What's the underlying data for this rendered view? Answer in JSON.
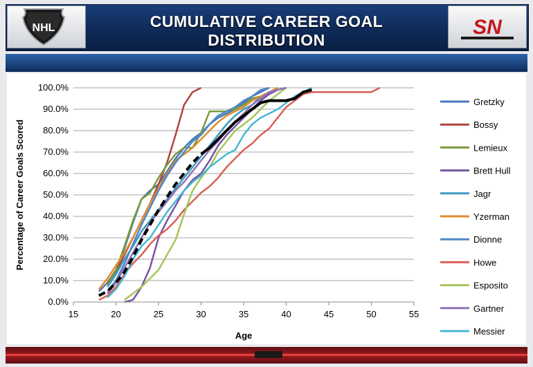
{
  "header": {
    "title": "CUMULATIVE CAREER GOAL DISTRIBUTION",
    "left_logo": "NHL",
    "right_logo": "SN"
  },
  "colors": {
    "header_bg": "#0f2a57",
    "accent_red": "#a3191e"
  },
  "chart_data": {
    "type": "line",
    "title": "",
    "xlabel": "Age",
    "ylabel": "Percentage of Career Goals Scored",
    "xlim": [
      15,
      55
    ],
    "ylim": [
      0,
      100
    ],
    "x_ticks": [
      15,
      20,
      25,
      30,
      35,
      40,
      45,
      50,
      55
    ],
    "x_tick_labels": [
      "15",
      "20",
      "25",
      "30",
      "35",
      "40",
      "45",
      "50",
      "55"
    ],
    "y_ticks": [
      0,
      10,
      20,
      30,
      40,
      50,
      60,
      70,
      80,
      90,
      100
    ],
    "y_tick_labels": [
      "0.0%",
      "10.0%",
      "20.0%",
      "30.0%",
      "40.0%",
      "50.0%",
      "60.0%",
      "70.0%",
      "80.0%",
      "90.0%",
      "100.0%"
    ],
    "grid": "horizontal",
    "legend": "right",
    "series": [
      {
        "name": "Gretzky",
        "color": "#4477bb",
        "points": [
          [
            18,
            5
          ],
          [
            19,
            9
          ],
          [
            20,
            15
          ],
          [
            21,
            25
          ],
          [
            22,
            37
          ],
          [
            23,
            48
          ],
          [
            24,
            52
          ],
          [
            25,
            55
          ],
          [
            26,
            61
          ],
          [
            27,
            67
          ],
          [
            28,
            72
          ],
          [
            29,
            76
          ],
          [
            30,
            79
          ],
          [
            31,
            83
          ],
          [
            32,
            86
          ],
          [
            33,
            88
          ],
          [
            34,
            90
          ],
          [
            35,
            93
          ],
          [
            36,
            96
          ],
          [
            37,
            98
          ],
          [
            38,
            100
          ]
        ]
      },
      {
        "name": "Bossy",
        "color": "#b0443c",
        "points": [
          [
            19,
            9
          ],
          [
            20,
            14
          ],
          [
            21,
            22
          ],
          [
            22,
            30
          ],
          [
            23,
            38
          ],
          [
            24,
            46
          ],
          [
            25,
            55
          ],
          [
            26,
            65
          ],
          [
            27,
            78
          ],
          [
            28,
            92
          ],
          [
            29,
            98
          ],
          [
            30,
            100
          ]
        ]
      },
      {
        "name": "Lemieux",
        "color": "#7a9a3a",
        "points": [
          [
            19,
            8
          ],
          [
            20,
            15
          ],
          [
            21,
            26
          ],
          [
            22,
            38
          ],
          [
            23,
            48
          ],
          [
            24,
            51
          ],
          [
            25,
            58
          ],
          [
            26,
            64
          ],
          [
            27,
            69
          ],
          [
            28,
            72
          ],
          [
            29,
            72
          ],
          [
            30,
            79
          ],
          [
            31,
            89
          ],
          [
            32,
            89
          ],
          [
            33,
            89
          ],
          [
            34,
            90
          ],
          [
            35,
            92
          ],
          [
            36,
            95
          ],
          [
            37,
            96
          ],
          [
            38,
            97
          ],
          [
            39,
            100
          ]
        ]
      },
      {
        "name": "Brett Hull",
        "color": "#7755a3",
        "points": [
          [
            21,
            0
          ],
          [
            22,
            1
          ],
          [
            23,
            7
          ],
          [
            24,
            16
          ],
          [
            25,
            30
          ],
          [
            26,
            38
          ],
          [
            27,
            45
          ],
          [
            28,
            52
          ],
          [
            29,
            57
          ],
          [
            30,
            60
          ],
          [
            31,
            66
          ],
          [
            32,
            73
          ],
          [
            33,
            78
          ],
          [
            34,
            82
          ],
          [
            35,
            86
          ],
          [
            36,
            90
          ],
          [
            37,
            94
          ],
          [
            38,
            97
          ],
          [
            39,
            99
          ],
          [
            40,
            100
          ]
        ]
      },
      {
        "name": "Jagr",
        "color": "#3a9bbf",
        "points": [
          [
            19,
            7
          ],
          [
            20,
            13
          ],
          [
            21,
            20
          ],
          [
            22,
            26
          ],
          [
            23,
            33
          ],
          [
            24,
            38
          ],
          [
            25,
            43
          ],
          [
            26,
            48
          ],
          [
            27,
            53
          ],
          [
            28,
            58
          ],
          [
            29,
            63
          ],
          [
            30,
            68
          ],
          [
            31,
            73
          ],
          [
            32,
            78
          ],
          [
            33,
            83
          ],
          [
            34,
            87
          ],
          [
            35,
            90
          ],
          [
            36,
            92
          ],
          [
            37,
            96
          ],
          [
            38,
            98
          ],
          [
            39,
            99
          ],
          [
            40,
            100
          ]
        ]
      },
      {
        "name": "Yzerman",
        "color": "#e28a2c",
        "points": [
          [
            18,
            6
          ],
          [
            19,
            11
          ],
          [
            20,
            17
          ],
          [
            21,
            23
          ],
          [
            22,
            30
          ],
          [
            23,
            38
          ],
          [
            24,
            46
          ],
          [
            25,
            53
          ],
          [
            26,
            60
          ],
          [
            27,
            66
          ],
          [
            28,
            69
          ],
          [
            29,
            72
          ],
          [
            30,
            76
          ],
          [
            31,
            80
          ],
          [
            32,
            84
          ],
          [
            33,
            87
          ],
          [
            34,
            89
          ],
          [
            35,
            91
          ],
          [
            36,
            94
          ],
          [
            37,
            96
          ],
          [
            38,
            98
          ],
          [
            39,
            100
          ]
        ]
      },
      {
        "name": "Dionne",
        "color": "#4d88c7",
        "points": [
          [
            19,
            5
          ],
          [
            20,
            10
          ],
          [
            21,
            18
          ],
          [
            22,
            27
          ],
          [
            23,
            36
          ],
          [
            24,
            44
          ],
          [
            25,
            52
          ],
          [
            26,
            59
          ],
          [
            27,
            65
          ],
          [
            28,
            70
          ],
          [
            29,
            75
          ],
          [
            30,
            78
          ],
          [
            31,
            83
          ],
          [
            32,
            87
          ],
          [
            33,
            89
          ],
          [
            34,
            91
          ],
          [
            35,
            94
          ],
          [
            36,
            96
          ],
          [
            37,
            99
          ],
          [
            38,
            100
          ]
        ]
      },
      {
        "name": "Howe",
        "color": "#d96055",
        "points": [
          [
            18,
            1
          ],
          [
            19,
            3
          ],
          [
            20,
            7
          ],
          [
            21,
            13
          ],
          [
            22,
            18
          ],
          [
            23,
            22
          ],
          [
            24,
            27
          ],
          [
            25,
            31
          ],
          [
            26,
            34
          ],
          [
            27,
            38
          ],
          [
            28,
            43
          ],
          [
            29,
            47
          ],
          [
            30,
            51
          ],
          [
            31,
            54
          ],
          [
            32,
            58
          ],
          [
            33,
            63
          ],
          [
            34,
            67
          ],
          [
            35,
            71
          ],
          [
            36,
            74
          ],
          [
            37,
            78
          ],
          [
            38,
            81
          ],
          [
            39,
            86
          ],
          [
            40,
            91
          ],
          [
            41,
            94
          ],
          [
            42,
            97
          ],
          [
            43,
            98
          ],
          [
            50,
            98
          ],
          [
            51,
            100
          ]
        ]
      },
      {
        "name": "Esposito",
        "color": "#a5c55c",
        "points": [
          [
            21,
            1
          ],
          [
            22,
            4
          ],
          [
            23,
            7
          ],
          [
            24,
            11
          ],
          [
            25,
            15
          ],
          [
            26,
            22
          ],
          [
            27,
            29
          ],
          [
            28,
            41
          ],
          [
            29,
            52
          ],
          [
            30,
            58
          ],
          [
            31,
            63
          ],
          [
            32,
            70
          ],
          [
            33,
            75
          ],
          [
            34,
            80
          ],
          [
            35,
            83
          ],
          [
            36,
            86
          ],
          [
            37,
            90
          ],
          [
            38,
            94
          ],
          [
            39,
            97
          ],
          [
            40,
            100
          ]
        ]
      },
      {
        "name": "Gartner",
        "color": "#9072b8",
        "points": [
          [
            19,
            4
          ],
          [
            20,
            9
          ],
          [
            21,
            16
          ],
          [
            22,
            23
          ],
          [
            23,
            30
          ],
          [
            24,
            37
          ],
          [
            25,
            42
          ],
          [
            26,
            47
          ],
          [
            27,
            52
          ],
          [
            28,
            56
          ],
          [
            29,
            61
          ],
          [
            30,
            66
          ],
          [
            31,
            71
          ],
          [
            32,
            75
          ],
          [
            33,
            80
          ],
          [
            34,
            84
          ],
          [
            35,
            88
          ],
          [
            36,
            92
          ],
          [
            37,
            95
          ],
          [
            38,
            98
          ],
          [
            39,
            99
          ],
          [
            40,
            100
          ]
        ]
      },
      {
        "name": "Messier",
        "color": "#47b8d4",
        "points": [
          [
            19,
            2
          ],
          [
            20,
            6
          ],
          [
            21,
            12
          ],
          [
            22,
            20
          ],
          [
            23,
            26
          ],
          [
            24,
            30
          ],
          [
            25,
            36
          ],
          [
            26,
            42
          ],
          [
            27,
            47
          ],
          [
            28,
            52
          ],
          [
            29,
            56
          ],
          [
            30,
            59
          ],
          [
            31,
            63
          ],
          [
            32,
            66
          ],
          [
            33,
            69
          ],
          [
            34,
            71
          ],
          [
            35,
            78
          ],
          [
            36,
            83
          ],
          [
            37,
            86
          ],
          [
            38,
            88
          ],
          [
            39,
            90
          ],
          [
            40,
            93
          ],
          [
            41,
            96
          ],
          [
            42,
            98
          ],
          [
            43,
            100
          ]
        ]
      },
      {
        "name": "",
        "color": "#000000",
        "dashed_segment_until": 30,
        "points": [
          [
            18,
            3
          ],
          [
            19,
            5
          ],
          [
            20,
            9
          ],
          [
            21,
            14
          ],
          [
            22,
            21
          ],
          [
            23,
            29
          ],
          [
            24,
            36
          ],
          [
            25,
            43
          ],
          [
            26,
            49
          ],
          [
            27,
            55
          ],
          [
            28,
            60
          ],
          [
            29,
            65
          ],
          [
            30,
            69
          ],
          [
            31,
            72
          ],
          [
            32,
            76
          ],
          [
            33,
            80
          ],
          [
            34,
            84
          ],
          [
            35,
            87
          ],
          [
            36,
            90
          ],
          [
            37,
            93
          ],
          [
            38,
            94
          ],
          [
            39,
            94
          ],
          [
            40,
            94
          ],
          [
            41,
            95
          ],
          [
            42,
            98
          ],
          [
            43,
            99
          ]
        ]
      }
    ]
  }
}
